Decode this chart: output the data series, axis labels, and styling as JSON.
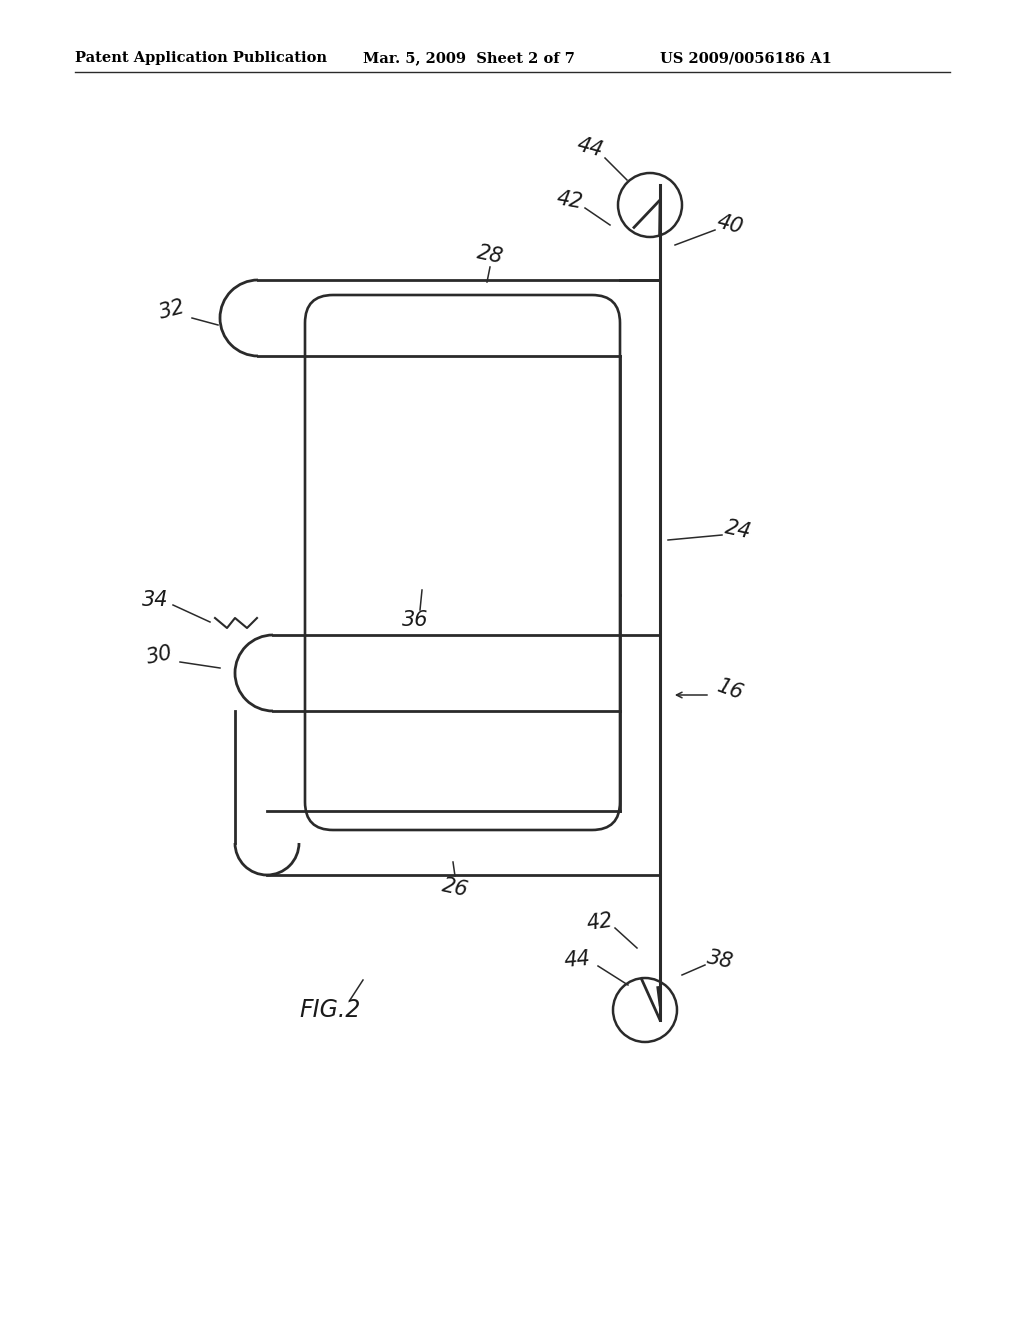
{
  "bg_color": "#ffffff",
  "line_color": "#2a2a2a",
  "lw_main": 2.0,
  "lw_thin": 1.2,
  "header_left": "Patent Application Publication",
  "header_mid": "Mar. 5, 2009  Sheet 2 of 7",
  "header_right": "US 2009/0056186 A1",
  "fig_label": "FIG.2",
  "page_width": 1.0,
  "page_height": 1.0
}
